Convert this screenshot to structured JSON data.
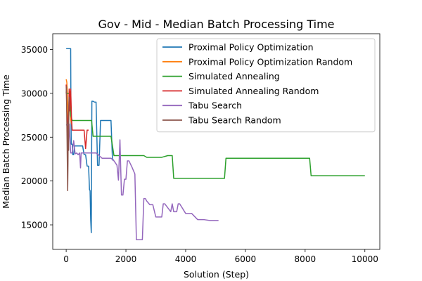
{
  "chart_data": {
    "type": "line",
    "title": "Gov - Mid - Median Batch Processing Time",
    "xlabel": "Solution (Step)",
    "ylabel": "Median Batch Processing Time",
    "xlim": [
      -450,
      10500
    ],
    "ylim": [
      12200,
      36800
    ],
    "xticks": [
      0,
      2000,
      4000,
      6000,
      8000,
      10000
    ],
    "yticks": [
      15000,
      20000,
      25000,
      30000,
      35000
    ],
    "grid": false,
    "legend_position": "top-right",
    "series": [
      {
        "name": "Proximal Policy Optimization",
        "color": "#1f77b4",
        "x": [
          0,
          10,
          20,
          30,
          40,
          50,
          60,
          80,
          90,
          100,
          140,
          150,
          160,
          170,
          200,
          220,
          250,
          280,
          300,
          350,
          400,
          450,
          500,
          550,
          600,
          650,
          700,
          750,
          780,
          800,
          820,
          840,
          860,
          880,
          900,
          950,
          1000,
          1050,
          1100,
          1150,
          1200,
          1500,
          1550,
          1600
        ],
        "y": [
          35100,
          35100,
          35100,
          35100,
          35100,
          35100,
          35100,
          35100,
          35100,
          35100,
          35100,
          35100,
          27500,
          24200,
          24200,
          23000,
          23000,
          24000,
          24000,
          24000,
          24000,
          24000,
          24000,
          24000,
          23000,
          23000,
          21700,
          21700,
          19000,
          18900,
          15600,
          14100,
          29100,
          29100,
          29100,
          29000,
          29000,
          21800,
          21800,
          26900,
          26900,
          26900,
          22400,
          22400
        ]
      },
      {
        "name": "Proximal Policy Optimization Random",
        "color": "#ff7f0e",
        "x": [
          0,
          20,
          40,
          60,
          80,
          100,
          120,
          150,
          180,
          200
        ],
        "y": [
          31600,
          31300,
          30100,
          27500,
          26800,
          28500,
          30200,
          27000,
          26500,
          26500
        ]
      },
      {
        "name": "Simulated Annealing",
        "color": "#2ca02c",
        "x": [
          0,
          50,
          100,
          150,
          200,
          250,
          300,
          400,
          500,
          600,
          700,
          800,
          850,
          900,
          1000,
          1200,
          1400,
          1500,
          1600,
          1800,
          2000,
          2200,
          2400,
          2600,
          2700,
          2800,
          3000,
          3200,
          3400,
          3500,
          3550,
          3600,
          4000,
          4500,
          5000,
          5300,
          5350,
          6000,
          7000,
          8000,
          8150,
          8200,
          9000,
          10000
        ],
        "y": [
          30000,
          30000,
          30000,
          27500,
          26900,
          26900,
          26900,
          26900,
          26900,
          26900,
          26900,
          26900,
          26900,
          25100,
          25100,
          25100,
          25100,
          25100,
          22900,
          22900,
          22900,
          22900,
          22900,
          22900,
          22700,
          22700,
          22700,
          22700,
          22900,
          22900,
          22900,
          20300,
          20300,
          20300,
          20300,
          20300,
          22600,
          22600,
          22600,
          22600,
          22600,
          20600,
          20600,
          20600
        ]
      },
      {
        "name": "Simulated Annealing Random",
        "color": "#d62728",
        "x": [
          0,
          20,
          40,
          60,
          80,
          100,
          120,
          150,
          180,
          200,
          250,
          300,
          400,
          500,
          600,
          650,
          700,
          750
        ],
        "y": [
          31000,
          28000,
          27200,
          24400,
          27000,
          30500,
          28000,
          30500,
          27000,
          25800,
          25800,
          25800,
          25800,
          25800,
          25800,
          23700,
          25800,
          25800
        ]
      },
      {
        "name": "Tabu Search",
        "color": "#9467bd",
        "x": [
          0,
          50,
          100,
          150,
          200,
          250,
          300,
          350,
          400,
          450,
          480,
          500,
          550,
          600,
          800,
          1000,
          1200,
          1400,
          1500,
          1600,
          1700,
          1750,
          1800,
          1850,
          1900,
          1950,
          2000,
          2050,
          2100,
          2200,
          2300,
          2350,
          2400,
          2500,
          2550,
          2600,
          2650,
          2700,
          2800,
          2900,
          3000,
          3100,
          3200,
          3250,
          3300,
          3500,
          3550,
          3600,
          3700,
          3750,
          3800,
          4000,
          4200,
          4400,
          4600,
          4800,
          5000,
          5100
        ],
        "y": [
          26400,
          26400,
          26500,
          23200,
          23200,
          24600,
          23100,
          23200,
          23000,
          23200,
          21500,
          23200,
          23200,
          23200,
          23200,
          23200,
          22600,
          22600,
          22600,
          22300,
          21800,
          20100,
          24700,
          18400,
          18400,
          20200,
          20200,
          22300,
          22300,
          21600,
          20800,
          13300,
          13300,
          13300,
          13300,
          18000,
          18000,
          17700,
          17300,
          17300,
          15900,
          15900,
          15900,
          17400,
          17400,
          16500,
          17400,
          16500,
          16500,
          17400,
          17400,
          16300,
          16300,
          15600,
          15600,
          15500,
          15500,
          15500
        ]
      },
      {
        "name": "Tabu Search Random",
        "color": "#8c564b",
        "x": [
          0,
          10,
          20,
          30,
          40,
          50,
          60,
          70,
          80,
          90,
          100
        ],
        "y": [
          30000,
          30800,
          27100,
          24600,
          21500,
          18900,
          22000,
          26700,
          23500,
          28500,
          29600
        ]
      }
    ]
  }
}
